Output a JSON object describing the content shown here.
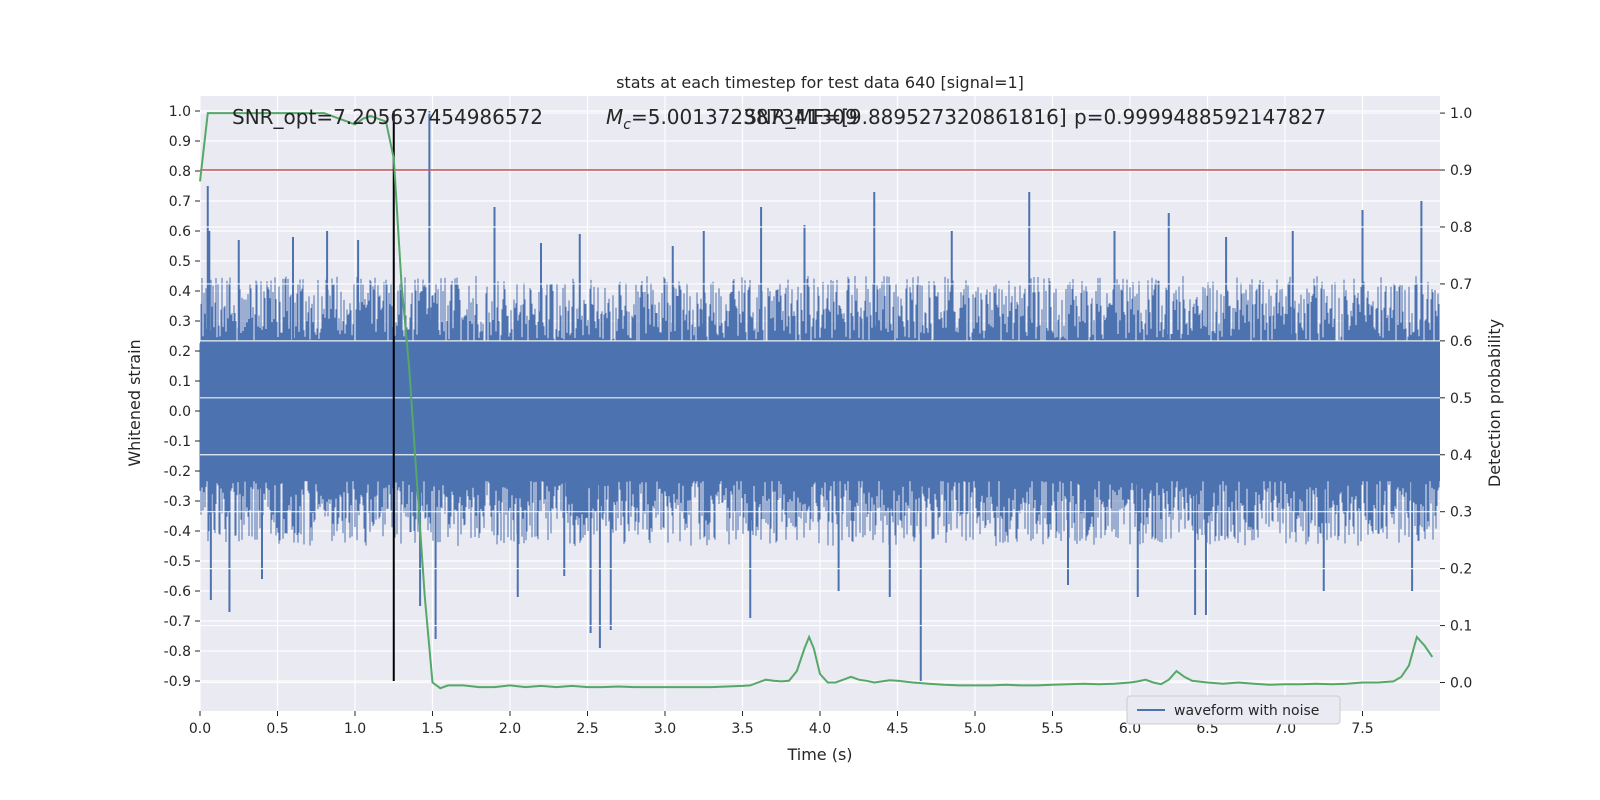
{
  "chart_data": {
    "type": "line",
    "title": "stats at each timestep for test data 640 [signal=1]",
    "xlabel": "Time (s)",
    "ylabel": "Whitened strain",
    "ylabel_right": "Detection probability",
    "xlim": [
      0.0,
      8.0
    ],
    "ylim": [
      -1.0,
      1.05
    ],
    "ylim_right": [
      -0.05,
      1.03
    ],
    "x_ticks": [
      0.0,
      0.5,
      1.0,
      1.5,
      2.0,
      2.5,
      3.0,
      3.5,
      4.0,
      4.5,
      5.0,
      5.5,
      6.0,
      6.5,
      7.0,
      7.5
    ],
    "y_ticks": [
      -0.9,
      -0.8,
      -0.7,
      -0.6,
      -0.5,
      -0.4,
      -0.3,
      -0.2,
      -0.1,
      0.0,
      0.1,
      0.2,
      0.3,
      0.4,
      0.5,
      0.6,
      0.7,
      0.8,
      0.9,
      1.0
    ],
    "y_ticks_right": [
      0.0,
      0.1,
      0.2,
      0.3,
      0.4,
      0.5,
      0.6,
      0.7,
      0.8,
      0.9,
      1.0
    ],
    "grid": true,
    "legend_position": "bottom-right",
    "annotations": {
      "snr_opt": "SNR_opt=7.205637454986572",
      "mc_symbol": "M",
      "mc_subscript": "c",
      "mc_value": "=5.001372387341309",
      "snr_mf": "SNR_MF=[9.889527320861816]",
      "p": "p=0.9999488592147827"
    },
    "vline_x": 1.25,
    "threshold_right": 0.9,
    "series": [
      {
        "name": "waveform with noise",
        "color": "#4c72b0",
        "axis": "left",
        "noise_core_amplitude": 0.3,
        "spikes": [
          {
            "x": 0.05,
            "y": 0.75
          },
          {
            "x": 0.06,
            "y": 0.6
          },
          {
            "x": 0.07,
            "y": -0.63
          },
          {
            "x": 0.19,
            "y": -0.67
          },
          {
            "x": 0.25,
            "y": 0.57
          },
          {
            "x": 0.4,
            "y": -0.56
          },
          {
            "x": 0.6,
            "y": 0.58
          },
          {
            "x": 0.82,
            "y": 0.6
          },
          {
            "x": 1.02,
            "y": 0.57
          },
          {
            "x": 1.48,
            "y": 1.0
          },
          {
            "x": 1.52,
            "y": -0.76
          },
          {
            "x": 1.42,
            "y": -0.65
          },
          {
            "x": 1.9,
            "y": 0.68
          },
          {
            "x": 2.05,
            "y": -0.62
          },
          {
            "x": 2.2,
            "y": 0.56
          },
          {
            "x": 2.35,
            "y": -0.55
          },
          {
            "x": 2.45,
            "y": 0.59
          },
          {
            "x": 2.52,
            "y": -0.74
          },
          {
            "x": 2.58,
            "y": -0.79
          },
          {
            "x": 2.65,
            "y": -0.73
          },
          {
            "x": 3.05,
            "y": 0.55
          },
          {
            "x": 3.25,
            "y": 0.6
          },
          {
            "x": 3.55,
            "y": -0.69
          },
          {
            "x": 3.62,
            "y": 0.68
          },
          {
            "x": 3.9,
            "y": 0.62
          },
          {
            "x": 4.12,
            "y": -0.6
          },
          {
            "x": 4.35,
            "y": 0.73
          },
          {
            "x": 4.45,
            "y": -0.62
          },
          {
            "x": 4.65,
            "y": -0.9
          },
          {
            "x": 4.85,
            "y": 0.6
          },
          {
            "x": 5.35,
            "y": 0.73
          },
          {
            "x": 5.6,
            "y": -0.58
          },
          {
            "x": 5.9,
            "y": 0.6
          },
          {
            "x": 6.05,
            "y": -0.62
          },
          {
            "x": 6.25,
            "y": 0.66
          },
          {
            "x": 6.42,
            "y": -0.68
          },
          {
            "x": 6.49,
            "y": -0.68
          },
          {
            "x": 6.62,
            "y": 0.58
          },
          {
            "x": 7.05,
            "y": 0.6
          },
          {
            "x": 7.25,
            "y": -0.6
          },
          {
            "x": 7.5,
            "y": 0.67
          },
          {
            "x": 7.82,
            "y": -0.6
          },
          {
            "x": 7.88,
            "y": 0.7
          }
        ]
      },
      {
        "name": "",
        "color": "#55a868",
        "axis": "right",
        "x": [
          0.0,
          0.05,
          0.1,
          0.2,
          0.3,
          0.4,
          0.5,
          0.6,
          0.7,
          0.8,
          0.9,
          0.95,
          1.0,
          1.05,
          1.1,
          1.15,
          1.2,
          1.25,
          1.3,
          1.35,
          1.4,
          1.45,
          1.5,
          1.55,
          1.6,
          1.7,
          1.8,
          1.9,
          2.0,
          2.1,
          2.2,
          2.3,
          2.4,
          2.5,
          2.6,
          2.7,
          2.8,
          2.9,
          3.0,
          3.1,
          3.2,
          3.3,
          3.4,
          3.5,
          3.55,
          3.6,
          3.65,
          3.7,
          3.75,
          3.8,
          3.85,
          3.9,
          3.93,
          3.96,
          4.0,
          4.05,
          4.1,
          4.15,
          4.2,
          4.25,
          4.3,
          4.35,
          4.4,
          4.45,
          4.5,
          4.6,
          4.7,
          4.8,
          4.9,
          5.0,
          5.1,
          5.2,
          5.3,
          5.4,
          5.5,
          5.6,
          5.7,
          5.8,
          5.9,
          6.0,
          6.05,
          6.1,
          6.15,
          6.2,
          6.25,
          6.3,
          6.35,
          6.4,
          6.5,
          6.6,
          6.7,
          6.8,
          6.9,
          7.0,
          7.1,
          7.2,
          7.3,
          7.4,
          7.5,
          7.6,
          7.7,
          7.75,
          7.8,
          7.85,
          7.9,
          7.95
        ],
        "values": [
          0.88,
          1.0,
          1.0,
          1.0,
          1.0,
          1.0,
          1.0,
          1.0,
          1.0,
          1.0,
          0.99,
          0.985,
          0.98,
          0.99,
          0.995,
          0.99,
          0.985,
          0.92,
          0.7,
          0.55,
          0.35,
          0.15,
          0.0,
          -0.01,
          -0.005,
          -0.005,
          -0.008,
          -0.008,
          -0.005,
          -0.008,
          -0.006,
          -0.008,
          -0.006,
          -0.008,
          -0.008,
          -0.007,
          -0.008,
          -0.008,
          -0.008,
          -0.008,
          -0.008,
          -0.008,
          -0.007,
          -0.006,
          -0.005,
          0.0,
          0.005,
          0.003,
          0.002,
          0.003,
          0.02,
          0.06,
          0.08,
          0.06,
          0.015,
          0.0,
          0.0,
          0.005,
          0.01,
          0.005,
          0.003,
          0.0,
          0.002,
          0.004,
          0.003,
          0.0,
          -0.002,
          -0.004,
          -0.005,
          -0.005,
          -0.005,
          -0.004,
          -0.005,
          -0.005,
          -0.004,
          -0.003,
          -0.002,
          -0.003,
          -0.002,
          0.0,
          0.002,
          0.005,
          0.0,
          -0.003,
          0.005,
          0.02,
          0.01,
          0.003,
          0.0,
          -0.002,
          0.0,
          -0.002,
          -0.004,
          -0.003,
          -0.003,
          -0.002,
          -0.003,
          -0.002,
          0.0,
          0.0,
          0.002,
          0.01,
          0.03,
          0.08,
          0.065,
          0.045
        ]
      }
    ]
  }
}
